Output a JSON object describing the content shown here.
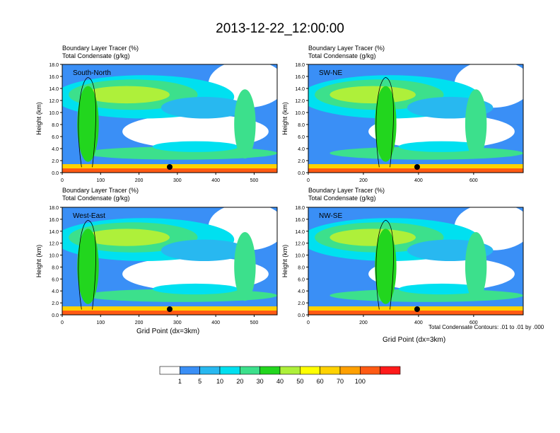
{
  "title": "2013-12-22_12:00:00",
  "panel_caption_line1": "Boundary Layer Tracer    (%)",
  "panel_caption_line2": "Total Condensate    (g/kg)",
  "x_axis_label": "Grid Point (dx=3km)",
  "contour_note": "Total Condensate Contours: .01 to .01 by .000",
  "colorbar": {
    "labels": [
      "1",
      "5",
      "10",
      "20",
      "30",
      "40",
      "50",
      "60",
      "70",
      "100"
    ],
    "colors": [
      "#ffffff",
      "#3a8ff6",
      "#28b8f0",
      "#00e0f0",
      "#3ce08c",
      "#22d61e",
      "#aef03a",
      "#ffff00",
      "#ffd200",
      "#ffa000",
      "#ff5a14",
      "#ff1a1a"
    ]
  },
  "chart_data": [
    {
      "type": "heatmap",
      "label": "South-North",
      "ylabel": "Height (km)",
      "xlabel": "",
      "xlim": [
        0,
        560
      ],
      "ylim": [
        0,
        18
      ],
      "xticks": [
        "0",
        "100",
        "200",
        "300",
        "400",
        "500"
      ],
      "yticks": [
        "0.0",
        "2.0",
        "4.0",
        "6.0",
        "8.0",
        "10.0",
        "12.0",
        "14.0",
        "16.0",
        "18.0"
      ],
      "marker_x": 280
    },
    {
      "type": "heatmap",
      "label": "SW-NE",
      "ylabel": "Height (km)",
      "xlabel": "",
      "xlim": [
        0,
        780
      ],
      "ylim": [
        0,
        18
      ],
      "xticks": [
        "0",
        "200",
        "400",
        "600"
      ],
      "yticks": [
        "0.0",
        "2.0",
        "4.0",
        "6.0",
        "8.0",
        "10.0",
        "12.0",
        "14.0",
        "16.0",
        "18.0"
      ],
      "marker_x": 395
    },
    {
      "type": "heatmap",
      "label": "West-East",
      "ylabel": "Height (km)",
      "xlabel": "Grid Point (dx=3km)",
      "xlim": [
        0,
        560
      ],
      "ylim": [
        0,
        18
      ],
      "xticks": [
        "0",
        "100",
        "200",
        "300",
        "400",
        "500"
      ],
      "yticks": [
        "0.0",
        "2.0",
        "4.0",
        "6.0",
        "8.0",
        "10.0",
        "12.0",
        "14.0",
        "16.0",
        "18.0"
      ],
      "marker_x": 280
    },
    {
      "type": "heatmap",
      "label": "NW-SE",
      "ylabel": "Height (km)",
      "xlabel": "Grid Point (dx=3km)",
      "xlim": [
        0,
        780
      ],
      "ylim": [
        0,
        18
      ],
      "xticks": [
        "0",
        "200",
        "400",
        "600"
      ],
      "yticks": [
        "0.0",
        "2.0",
        "4.0",
        "6.0",
        "8.0",
        "10.0",
        "12.0",
        "14.0",
        "16.0",
        "18.0"
      ],
      "marker_x": 395
    }
  ]
}
